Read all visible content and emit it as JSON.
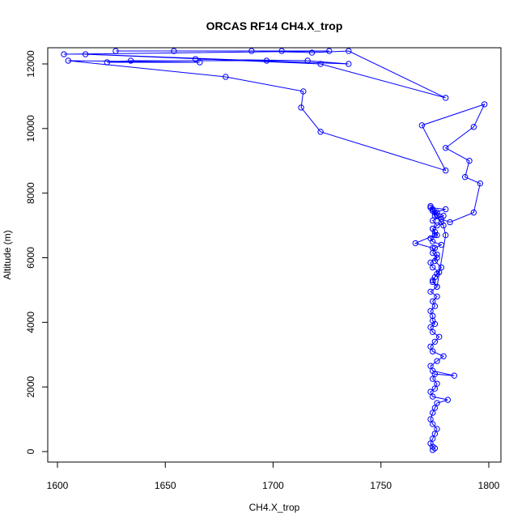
{
  "chart_data": {
    "type": "line",
    "title": "ORCAS RF14 CH4.X_trop",
    "xlabel": "CH4.X_trop",
    "ylabel": "Altitude (m)",
    "xlim": [
      1600,
      1800
    ],
    "ylim": [
      0,
      12000
    ],
    "xticks": [
      1600,
      1650,
      1700,
      1750,
      1800
    ],
    "yticks": [
      0,
      2000,
      4000,
      6000,
      8000,
      10000,
      12000
    ],
    "marker": "open-circle",
    "grid": false,
    "colors": {
      "series": "#0000ff",
      "axis": "#000000"
    },
    "series": [
      {
        "x": [
          1774,
          1775,
          1774,
          1773,
          1774,
          1775,
          1776,
          1774,
          1773,
          1774,
          1775,
          1776,
          1781,
          1774,
          1773,
          1775,
          1776,
          1774,
          1775,
          1784,
          1774,
          1773,
          1776,
          1779,
          1774,
          1773,
          1775,
          1777,
          1774,
          1773,
          1775,
          1774,
          1774,
          1773,
          1775,
          1774,
          1776,
          1773,
          1776,
          1774,
          1775,
          1777,
          1774,
          1773,
          1776,
          1774,
          1775,
          1778,
          1774,
          1773,
          1776,
          1775,
          1774,
          1776,
          1774,
          1779,
          1776,
          1774,
          1773,
          1775,
          1778,
          1774,
          1775,
          1766,
          1774,
          1776,
          1775,
          1778,
          1776,
          1774,
          1776,
          1780,
          1779,
          1776,
          1774,
          1773,
          1780,
          1775,
          1778,
          1782,
          1793,
          1796,
          1789,
          1791,
          1780,
          1793,
          1798,
          1769,
          1780,
          1722,
          1713,
          1714,
          1678,
          1605,
          1666,
          1623,
          1634,
          1697,
          1664,
          1716,
          1735,
          1613,
          1722,
          1780,
          1735,
          1718,
          1690,
          1654,
          1627,
          1704,
          1726,
          1603
        ],
        "y": [
          50,
          100,
          150,
          250,
          400,
          550,
          700,
          850,
          1000,
          1200,
          1350,
          1500,
          1600,
          1700,
          1850,
          1950,
          2100,
          2250,
          2400,
          2350,
          2500,
          2650,
          2800,
          2950,
          3100,
          3250,
          3400,
          3550,
          3700,
          3850,
          3950,
          4050,
          4200,
          4350,
          4500,
          4650,
          4800,
          4950,
          5100,
          5250,
          5400,
          5550,
          5700,
          5850,
          6000,
          6150,
          6300,
          6400,
          6500,
          6600,
          6700,
          6800,
          6900,
          7000,
          7150,
          7300,
          7400,
          7500,
          7600,
          7300,
          7100,
          6900,
          6700,
          6450,
          6300,
          6100,
          5900,
          5700,
          5500,
          5300,
          5100,
          6700,
          7000,
          7300,
          7450,
          7550,
          7500,
          7400,
          7200,
          7100,
          7400,
          8300,
          8500,
          9000,
          9400,
          10050,
          10750,
          10100,
          8700,
          9900,
          10650,
          11150,
          11600,
          12100,
          12050,
          12050,
          12100,
          12100,
          12150,
          12100,
          12000,
          12300,
          12000,
          10950,
          12400,
          12350,
          12400,
          12400,
          12400,
          12400,
          12400,
          12300
        ]
      }
    ]
  }
}
